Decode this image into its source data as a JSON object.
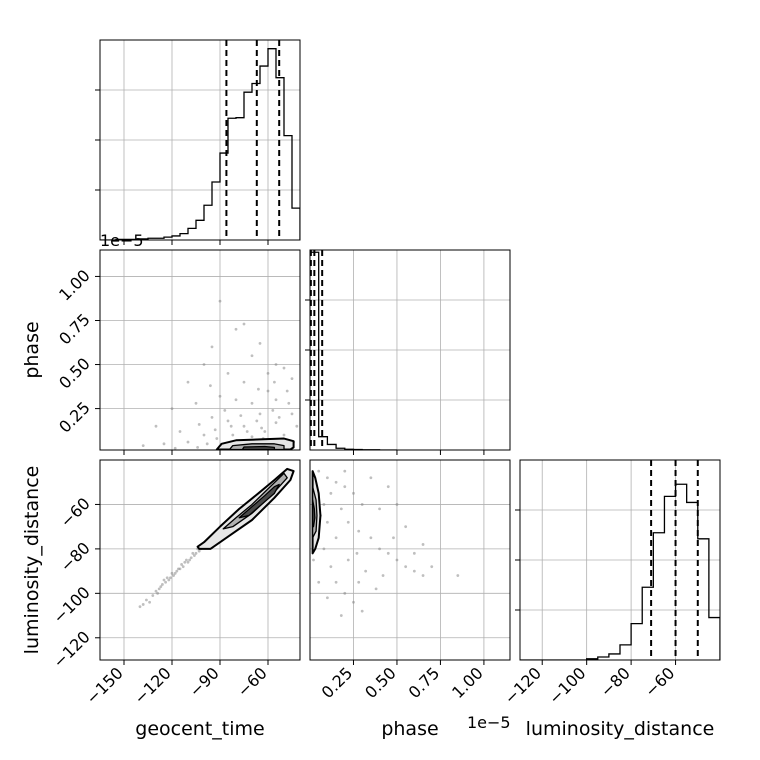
{
  "chart_data": {
    "type": "corner",
    "parameters": [
      "geocent_time",
      "phase",
      "luminosity_distance"
    ],
    "colors": {
      "line": "#000000",
      "grid": "#b0b0b0",
      "scatter": "#808080"
    },
    "grid": true,
    "quantiles_style": "dashed",
    "panels": [
      {
        "id": "hist-geocent_time",
        "type": "histogram",
        "parameter": "geocent_time",
        "xlim": [
          -165,
          -40
        ],
        "bin_edges": [
          -165,
          -160,
          -155,
          -150,
          -145,
          -140,
          -135,
          -130,
          -125,
          -120,
          -115,
          -110,
          -105,
          -100,
          -95,
          -90,
          -85,
          -80,
          -75,
          -70,
          -65,
          -60,
          -55,
          -50,
          -45,
          -40
        ],
        "counts": [
          0,
          0,
          1,
          1,
          1,
          2,
          3,
          3,
          5,
          7,
          11,
          20,
          34,
          60,
          100,
          150,
          210,
          211,
          255,
          270,
          300,
          330,
          280,
          180,
          55,
          0
        ],
        "ymax": 345,
        "quantiles": [
          -86,
          -67,
          -53
        ],
        "offset_text": "1e−5"
      },
      {
        "id": "hist-phase",
        "type": "histogram",
        "parameter": "phase",
        "xlim": [
          0,
          1.15
        ],
        "bin_edges": [
          0,
          0.05,
          0.1,
          0.15,
          0.2,
          0.25,
          0.3,
          0.35,
          0.4,
          0.45,
          0.5
        ],
        "counts": [
          890,
          60,
          25,
          8,
          3,
          2,
          1,
          1,
          0,
          0
        ],
        "ymax": 900,
        "quantiles": [
          0.005,
          0.025,
          0.07
        ]
      },
      {
        "id": "hist-luminosity_distance",
        "type": "histogram",
        "parameter": "luminosity_distance",
        "xlim": [
          -130,
          -40
        ],
        "bin_edges": [
          -130,
          -125,
          -120,
          -115,
          -110,
          -105,
          -100,
          -95,
          -90,
          -85,
          -80,
          -75,
          -70,
          -65,
          -60,
          -55,
          -50,
          -45,
          -40
        ],
        "counts": [
          0,
          0,
          0,
          0,
          0,
          0,
          2,
          5,
          10,
          25,
          60,
          120,
          210,
          270,
          290,
          260,
          200,
          70,
          0
        ],
        "ymax": 330,
        "quantiles": [
          -71,
          -60,
          -50
        ]
      },
      {
        "id": "scatter-phase-vs-geocent_time",
        "type": "scatter_contour",
        "x_parameter": "geocent_time",
        "y_parameter": "phase",
        "xlim": [
          -165,
          -40
        ],
        "ylim": [
          0.015,
          1.15
        ],
        "points": [
          [
            -90,
            0.86
          ],
          [
            -80,
            0.7
          ],
          [
            -75,
            0.73
          ],
          [
            -95,
            0.6
          ],
          [
            -70,
            0.55
          ],
          [
            -60,
            0.45
          ],
          [
            -85,
            0.45
          ],
          [
            -100,
            0.5
          ],
          [
            -65,
            0.62
          ],
          [
            -55,
            0.5
          ],
          [
            -110,
            0.4
          ],
          [
            -50,
            0.48
          ],
          [
            -45,
            0.42
          ],
          [
            -60,
            0.35
          ],
          [
            -75,
            0.4
          ],
          [
            -90,
            0.32
          ],
          [
            -120,
            0.25
          ],
          [
            -130,
            0.15
          ],
          [
            -105,
            0.28
          ],
          [
            -80,
            0.3
          ],
          [
            -70,
            0.28
          ],
          [
            -55,
            0.3
          ],
          [
            -48,
            0.35
          ],
          [
            -65,
            0.22
          ],
          [
            -95,
            0.2
          ],
          [
            -85,
            0.18
          ],
          [
            -115,
            0.12
          ],
          [
            -100,
            0.1
          ],
          [
            -75,
            0.15
          ],
          [
            -55,
            0.17
          ],
          [
            -45,
            0.22
          ],
          [
            -62,
            0.12
          ],
          [
            -82,
            0.1
          ],
          [
            -92,
            0.08
          ],
          [
            -110,
            0.06
          ],
          [
            -125,
            0.05
          ],
          [
            -138,
            0.04
          ],
          [
            -70,
            0.09
          ],
          [
            -50,
            0.1
          ],
          [
            -42,
            0.15
          ],
          [
            -58,
            0.07
          ],
          [
            -78,
            0.06
          ],
          [
            -88,
            0.04
          ],
          [
            -98,
            0.05
          ],
          [
            -68,
            0.04
          ],
          [
            -52,
            0.05
          ],
          [
            -44,
            0.06
          ],
          [
            -60,
            0.03
          ],
          [
            -72,
            0.03
          ],
          [
            -84,
            0.03
          ],
          [
            -104,
            0.03
          ],
          [
            -118,
            0.025
          ],
          [
            -64,
            0.14
          ],
          [
            -47,
            0.28
          ],
          [
            -53,
            0.2
          ],
          [
            -87,
            0.24
          ],
          [
            -77,
            0.21
          ],
          [
            -67,
            0.18
          ],
          [
            -57,
            0.24
          ],
          [
            -103,
            0.16
          ],
          [
            -93,
            0.13
          ],
          [
            -73,
            0.12
          ],
          [
            -63,
            0.08
          ],
          [
            -83,
            0.15
          ],
          [
            -96,
            0.38
          ],
          [
            -66,
            0.36
          ],
          [
            -56,
            0.4
          ]
        ],
        "contours": [
          [
            [
              -92,
              0.018
            ],
            [
              -89,
              0.05
            ],
            [
              -80,
              0.07
            ],
            [
              -65,
              0.075
            ],
            [
              -50,
              0.08
            ],
            [
              -44,
              0.065
            ],
            [
              -44,
              0.03
            ],
            [
              -46,
              0.018
            ]
          ],
          [
            [
              -84,
              0.018
            ],
            [
              -82,
              0.04
            ],
            [
              -70,
              0.05
            ],
            [
              -56,
              0.05
            ],
            [
              -50,
              0.04
            ],
            [
              -50,
              0.018
            ]
          ],
          [
            [
              -76,
              0.018
            ],
            [
              -75,
              0.032
            ],
            [
              -62,
              0.035
            ],
            [
              -56,
              0.03
            ],
            [
              -56,
              0.018
            ]
          ]
        ]
      },
      {
        "id": "scatter-luminosity_distance-vs-geocent_time",
        "type": "scatter_contour",
        "x_parameter": "geocent_time",
        "y_parameter": "luminosity_distance",
        "xlim": [
          -165,
          -40
        ],
        "ylim": [
          -130,
          -40
        ],
        "points": [
          [
            -140,
            -106
          ],
          [
            -136,
            -103
          ],
          [
            -132,
            -101
          ],
          [
            -130,
            -99
          ],
          [
            -127,
            -97
          ],
          [
            -124,
            -95
          ],
          [
            -121,
            -93
          ],
          [
            -118,
            -91
          ],
          [
            -116,
            -89
          ],
          [
            -113,
            -88
          ],
          [
            -110,
            -86
          ],
          [
            -108,
            -84
          ],
          [
            -105,
            -82
          ],
          [
            -103,
            -81
          ],
          [
            -100,
            -79
          ],
          [
            -134,
            -104
          ],
          [
            -128,
            -98
          ],
          [
            -122,
            -94
          ],
          [
            -119,
            -92
          ],
          [
            -114,
            -87
          ],
          [
            -111,
            -85
          ],
          [
            -106,
            -83
          ],
          [
            -102,
            -80
          ],
          [
            -99,
            -78
          ],
          [
            -126,
            -96
          ],
          [
            -123,
            -93
          ],
          [
            -117,
            -90
          ],
          [
            -112,
            -86
          ],
          [
            -107,
            -82
          ],
          [
            -104,
            -80
          ],
          [
            -138,
            -105
          ],
          [
            -129,
            -100
          ],
          [
            -125,
            -94
          ],
          [
            -120,
            -91
          ],
          [
            -115,
            -89
          ],
          [
            -109,
            -85
          ],
          [
            -101,
            -78
          ]
        ],
        "contours": [
          [
            [
              -104,
              -79
            ],
            [
              -100,
              -77
            ],
            [
              -90,
              -70
            ],
            [
              -78,
              -62
            ],
            [
              -66,
              -55
            ],
            [
              -56,
              -49
            ],
            [
              -48,
              -44
            ],
            [
              -44,
              -45
            ],
            [
              -46,
              -49
            ],
            [
              -56,
              -57
            ],
            [
              -70,
              -67
            ],
            [
              -84,
              -74
            ],
            [
              -96,
              -80
            ],
            [
              -103,
              -80
            ]
          ],
          [
            [
              -88,
              -71
            ],
            [
              -80,
              -66
            ],
            [
              -70,
              -60
            ],
            [
              -60,
              -53
            ],
            [
              -50,
              -46
            ],
            [
              -48,
              -48
            ],
            [
              -58,
              -56
            ],
            [
              -70,
              -64
            ],
            [
              -82,
              -70
            ]
          ],
          [
            [
              -78,
              -66
            ],
            [
              -70,
              -61
            ],
            [
              -62,
              -56
            ],
            [
              -56,
              -52
            ],
            [
              -53,
              -51
            ],
            [
              -56,
              -55
            ],
            [
              -64,
              -60
            ],
            [
              -72,
              -65
            ]
          ]
        ]
      },
      {
        "id": "scatter-luminosity_distance-vs-phase",
        "type": "scatter_contour",
        "x_parameter": "phase",
        "y_parameter": "luminosity_distance",
        "xlim": [
          0,
          1.15
        ],
        "ylim": [
          -130,
          -40
        ],
        "points": [
          [
            0.05,
            -45
          ],
          [
            0.1,
            -48
          ],
          [
            0.15,
            -50
          ],
          [
            0.2,
            -52
          ],
          [
            0.25,
            -55
          ],
          [
            0.3,
            -60
          ],
          [
            0.12,
            -55
          ],
          [
            0.18,
            -62
          ],
          [
            0.22,
            -68
          ],
          [
            0.28,
            -72
          ],
          [
            0.35,
            -75
          ],
          [
            0.4,
            -80
          ],
          [
            0.45,
            -82
          ],
          [
            0.5,
            -85
          ],
          [
            0.55,
            -88
          ],
          [
            0.6,
            -90
          ],
          [
            0.65,
            -92
          ],
          [
            0.7,
            -88
          ],
          [
            0.85,
            -92
          ],
          [
            0.4,
            -62
          ],
          [
            0.55,
            -70
          ],
          [
            0.65,
            -78
          ],
          [
            0.08,
            -80
          ],
          [
            0.12,
            -88
          ],
          [
            0.15,
            -95
          ],
          [
            0.2,
            -100
          ],
          [
            0.25,
            -104
          ],
          [
            0.3,
            -108
          ],
          [
            0.18,
            -110
          ],
          [
            0.1,
            -102
          ],
          [
            0.05,
            -95
          ],
          [
            0.32,
            -90
          ],
          [
            0.42,
            -92
          ],
          [
            0.38,
            -98
          ],
          [
            0.28,
            -95
          ],
          [
            0.22,
            -85
          ],
          [
            0.15,
            -75
          ],
          [
            0.1,
            -68
          ],
          [
            0.08,
            -60
          ],
          [
            0.2,
            -45
          ],
          [
            0.35,
            -48
          ],
          [
            0.45,
            -52
          ],
          [
            0.5,
            -60
          ],
          [
            0.03,
            -55
          ],
          [
            0.06,
            -65
          ],
          [
            0.04,
            -75
          ],
          [
            0.02,
            -85
          ],
          [
            0.27,
            -82
          ],
          [
            0.48,
            -75
          ],
          [
            0.6,
            -82
          ]
        ],
        "contours": [
          [
            [
              0.015,
              -45
            ],
            [
              0.03,
              -48
            ],
            [
              0.05,
              -55
            ],
            [
              0.06,
              -65
            ],
            [
              0.05,
              -75
            ],
            [
              0.03,
              -80
            ],
            [
              0.015,
              -82
            ]
          ],
          [
            [
              0.015,
              -52
            ],
            [
              0.035,
              -58
            ],
            [
              0.04,
              -65
            ],
            [
              0.035,
              -72
            ],
            [
              0.015,
              -75
            ]
          ],
          [
            [
              0.015,
              -58
            ],
            [
              0.025,
              -62
            ],
            [
              0.028,
              -66
            ],
            [
              0.02,
              -70
            ],
            [
              0.015,
              -70
            ]
          ]
        ]
      }
    ],
    "axes": {
      "geocent_time": {
        "label": "geocent_time",
        "ticks": [
          -150,
          -120,
          -90,
          -60
        ],
        "tick_labels": [
          "−150",
          "−120",
          "−90",
          "−60"
        ]
      },
      "phase": {
        "label": "phase",
        "ticks": [
          0.25,
          0.5,
          0.75,
          1.0
        ],
        "tick_labels": [
          "0.25",
          "0.50",
          "0.75",
          "1.00"
        ],
        "offset_text": "1e−5"
      },
      "luminosity_distance": {
        "label": "luminosity_distance",
        "ticks": [
          -120,
          -100,
          -80,
          -60
        ],
        "tick_labels": [
          "−120",
          "−100",
          "−80",
          "−60"
        ]
      }
    }
  }
}
